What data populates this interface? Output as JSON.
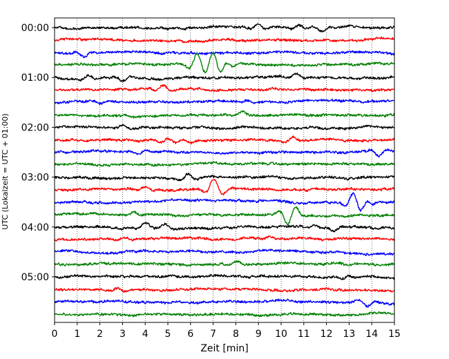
{
  "chart_data": {
    "type": "line",
    "title": "",
    "xlabel": "Zeit  [min]",
    "ylabel": "UTC (Lokalzeit = UTC + 01:00)",
    "xlim": [
      0,
      15
    ],
    "x_ticks": [
      "0",
      "1",
      "2",
      "3",
      "4",
      "5",
      "6",
      "7",
      "8",
      "9",
      "10",
      "11",
      "12",
      "13",
      "14",
      "15"
    ],
    "y_ticks": [
      "00:00",
      "01:00",
      "02:00",
      "03:00",
      "04:00",
      "05:00"
    ],
    "grid": "vertical-dotted",
    "trace_interval_min": 15,
    "trace_count": 24,
    "trace_colors": [
      "#000000",
      "#ff0000",
      "#0000ff",
      "#008000"
    ],
    "series": [
      {
        "start": "00:00",
        "events": [
          [
            9.0,
            0.5
          ],
          [
            10.8,
            0.4
          ],
          [
            11.8,
            -0.5
          ]
        ]
      },
      {
        "start": "00:15",
        "events": []
      },
      {
        "start": "00:30",
        "events": [
          [
            1.3,
            -0.5
          ]
        ]
      },
      {
        "start": "00:45",
        "events": [
          [
            6.3,
            1.6
          ],
          [
            7.0,
            1.4
          ],
          [
            7.3,
            -0.8
          ],
          [
            7.8,
            -0.5
          ]
        ]
      },
      {
        "start": "01:00",
        "events": [
          [
            1.5,
            0.4
          ],
          [
            3.0,
            -0.5
          ],
          [
            10.7,
            0.4
          ]
        ]
      },
      {
        "start": "01:15",
        "events": [
          [
            4.8,
            0.6
          ]
        ]
      },
      {
        "start": "01:30",
        "events": [
          [
            2.0,
            -0.3
          ],
          [
            8.5,
            0.3
          ]
        ]
      },
      {
        "start": "01:45",
        "events": [
          [
            8.3,
            0.4
          ]
        ]
      },
      {
        "start": "02:00",
        "events": [
          [
            3.0,
            0.3
          ]
        ]
      },
      {
        "start": "02:15",
        "events": [
          [
            5.0,
            0.5
          ],
          [
            10.5,
            0.4
          ],
          [
            6.0,
            -0.3
          ]
        ]
      },
      {
        "start": "02:30",
        "events": [
          [
            3.7,
            -0.4
          ],
          [
            14.3,
            -0.6
          ]
        ]
      },
      {
        "start": "02:45",
        "events": []
      },
      {
        "start": "03:00",
        "events": [
          [
            5.9,
            0.6
          ]
        ]
      },
      {
        "start": "03:15",
        "events": [
          [
            7.0,
            1.2
          ],
          [
            7.5,
            -0.5
          ],
          [
            4.0,
            0.3
          ]
        ]
      },
      {
        "start": "03:30",
        "events": [
          [
            13.2,
            1.0
          ],
          [
            13.5,
            -0.9
          ],
          [
            14.0,
            -0.4
          ]
        ]
      },
      {
        "start": "03:45",
        "events": [
          [
            3.5,
            0.4
          ],
          [
            10.3,
            -1.2
          ],
          [
            10.6,
            0.6
          ]
        ]
      },
      {
        "start": "04:00",
        "events": [
          [
            4.0,
            0.5
          ],
          [
            4.9,
            0.4
          ],
          [
            11.5,
            0.4
          ],
          [
            12.3,
            -0.5
          ]
        ]
      },
      {
        "start": "04:15",
        "events": [
          [
            3.1,
            0.3
          ],
          [
            9.5,
            0.3
          ]
        ]
      },
      {
        "start": "04:30",
        "events": []
      },
      {
        "start": "04:45",
        "events": [
          [
            8.0,
            0.3
          ]
        ]
      },
      {
        "start": "05:00",
        "events": [
          [
            13.0,
            0.3
          ]
        ]
      },
      {
        "start": "05:15",
        "events": [
          [
            2.8,
            0.3
          ]
        ]
      },
      {
        "start": "05:30",
        "events": [
          [
            13.8,
            -0.6
          ]
        ]
      },
      {
        "start": "05:45",
        "events": []
      }
    ]
  }
}
